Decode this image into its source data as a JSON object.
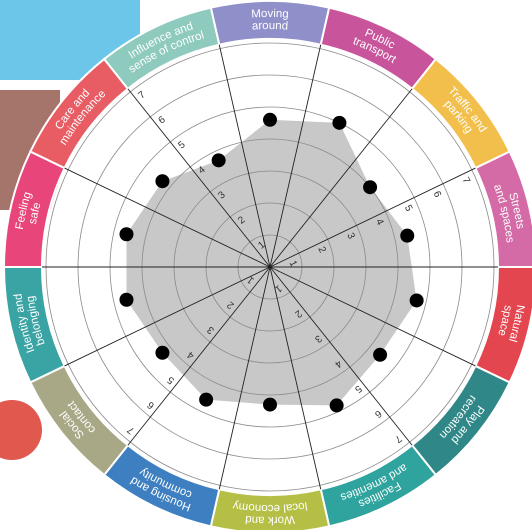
{
  "chart_data": {
    "type": "radar",
    "categories": [
      [
        "Moving",
        "around"
      ],
      [
        "Public",
        "transport"
      ],
      [
        "Traffic and",
        "parking"
      ],
      [
        "Streets",
        "and spaces"
      ],
      [
        "Natural",
        "space"
      ],
      [
        "Play and",
        "recreation"
      ],
      [
        "Facilities",
        "and amenities"
      ],
      [
        "Work and",
        "local economy"
      ],
      [
        "Housing and",
        "community"
      ],
      [
        "Social",
        "contact"
      ],
      [
        "Identity and",
        "belonging"
      ],
      [
        "Feeling",
        "safe"
      ],
      [
        "Care and",
        "maintenance"
      ],
      [
        "Influence and",
        "sense of control"
      ]
    ],
    "category_colors": [
      "#8f8fc9",
      "#c8559b",
      "#f2bf4c",
      "#d46aa6",
      "#e3464f",
      "#2f8787",
      "#2fa39d",
      "#b5bf45",
      "#3d7fc0",
      "#a8a887",
      "#3aa3a3",
      "#e8457b",
      "#e85c64",
      "#8ecbbe"
    ],
    "values": [
      4.6,
      5.0,
      4.0,
      4.4,
      4.7,
      4.4,
      4.8,
      4.3,
      4.6,
      4.3,
      4.6,
      4.6,
      4.3,
      3.7
    ],
    "color": "#c8c8c8",
    "ylim": [
      0,
      7
    ],
    "yticks": [
      1,
      2,
      3,
      4,
      5,
      6,
      7
    ],
    "grid": true
  }
}
